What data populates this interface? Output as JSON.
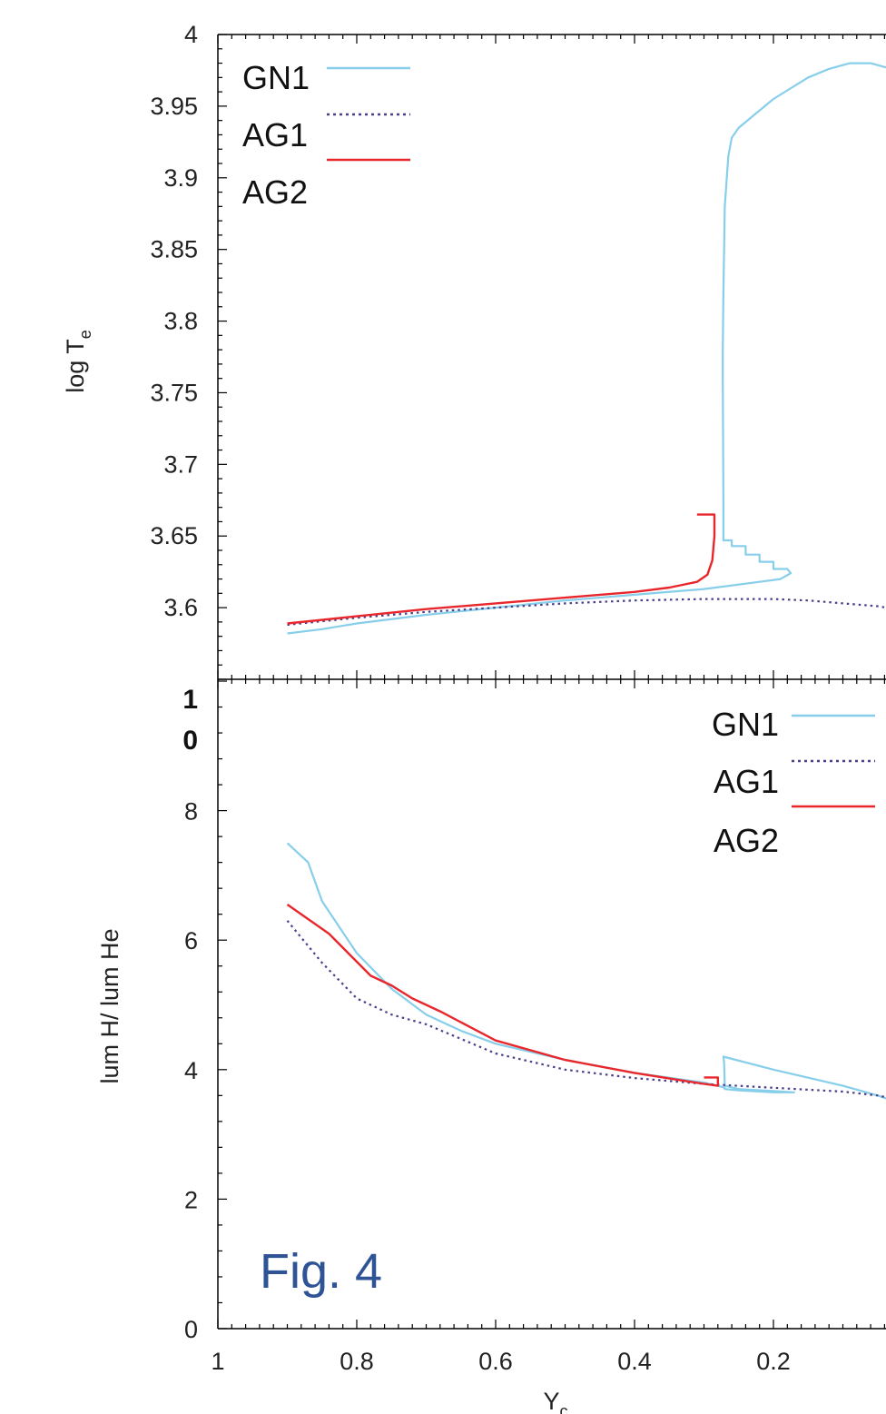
{
  "figure_label": "Fig. 4",
  "colors": {
    "GN1": "#87ceeb",
    "AG1": "#4b3f8a",
    "AG2": "#e8272c",
    "axis": "#000000",
    "fig_label": "#2f5496"
  },
  "chart_data": [
    {
      "type": "line",
      "xlabel": "",
      "ylabel": "log T_e",
      "ylabel_main": "log T",
      "ylabel_sub": "e",
      "xlim": [
        1.0,
        0.0
      ],
      "ylim": [
        3.55,
        4.0
      ],
      "x_ticks": [],
      "y_ticks": [
        "3.6",
        "3.65",
        "3.7",
        "3.75",
        "3.8",
        "3.85",
        "3.9",
        "3.95",
        "4"
      ],
      "legend": {
        "placement": "top-left",
        "entries": [
          "GN1",
          "AG1",
          "AG2"
        ]
      },
      "series": [
        {
          "name": "GN1",
          "style": "solid",
          "x": [
            0.9,
            0.85,
            0.8,
            0.7,
            0.6,
            0.5,
            0.4,
            0.3,
            0.22,
            0.19,
            0.175,
            0.18,
            0.2,
            0.2,
            0.22,
            0.22,
            0.24,
            0.24,
            0.26,
            0.26,
            0.272,
            0.272,
            0.273,
            0.273,
            0.272,
            0.27,
            0.265,
            0.26,
            0.25,
            0.2,
            0.15,
            0.12,
            0.09,
            0.06,
            0.03,
            0.0
          ],
          "y": [
            3.582,
            3.585,
            3.589,
            3.595,
            3.6,
            3.605,
            3.609,
            3.613,
            3.618,
            3.62,
            3.624,
            3.627,
            3.627,
            3.632,
            3.632,
            3.637,
            3.637,
            3.643,
            3.643,
            3.647,
            3.647,
            3.67,
            3.76,
            3.78,
            3.82,
            3.88,
            3.915,
            3.928,
            3.935,
            3.955,
            3.97,
            3.976,
            3.98,
            3.98,
            3.976,
            3.97
          ]
        },
        {
          "name": "AG1",
          "style": "dotted",
          "x": [
            0.9,
            0.8,
            0.7,
            0.6,
            0.5,
            0.4,
            0.3,
            0.2,
            0.15,
            0.1,
            0.05,
            0.0
          ],
          "y": [
            3.588,
            3.593,
            3.597,
            3.6,
            3.603,
            3.605,
            3.606,
            3.606,
            3.605,
            3.603,
            3.601,
            3.597
          ]
        },
        {
          "name": "AG2",
          "style": "solid",
          "x": [
            0.9,
            0.8,
            0.7,
            0.6,
            0.5,
            0.4,
            0.35,
            0.31,
            0.295,
            0.288,
            0.285,
            0.285,
            0.31
          ],
          "y": [
            3.589,
            3.594,
            3.599,
            3.603,
            3.607,
            3.611,
            3.614,
            3.618,
            3.623,
            3.633,
            3.65,
            3.665,
            3.665
          ]
        }
      ]
    },
    {
      "type": "line",
      "xlabel": "Y_c",
      "xlabel_main": "Y",
      "xlabel_sub": "c",
      "ylabel": "lum H/ lum He",
      "xlim": [
        1.0,
        0.0
      ],
      "ylim": [
        0,
        10
      ],
      "x_ticks": [
        "1",
        "0.8",
        "0.6",
        "0.4",
        "0.2"
      ],
      "y_ticks": [
        "0",
        "2",
        "4",
        "6",
        "8"
      ],
      "y_top_label": [
        "1",
        "0"
      ],
      "legend": {
        "placement": "top-right",
        "entries": [
          "GN1",
          "AG1",
          "AG2"
        ]
      },
      "series": [
        {
          "name": "GN1",
          "style": "solid",
          "x": [
            0.9,
            0.87,
            0.85,
            0.8,
            0.75,
            0.7,
            0.65,
            0.6,
            0.5,
            0.4,
            0.3,
            0.28,
            0.27,
            0.27,
            0.25,
            0.2,
            0.17,
            0.2,
            0.25,
            0.27,
            0.271,
            0.272,
            0.2,
            0.1,
            0.05,
            0.0
          ],
          "y": [
            7.5,
            7.2,
            6.6,
            5.8,
            5.25,
            4.85,
            4.6,
            4.4,
            4.15,
            3.95,
            3.8,
            3.75,
            3.72,
            3.7,
            3.68,
            3.65,
            3.65,
            3.67,
            3.7,
            3.75,
            4.1,
            4.2,
            4.0,
            3.75,
            3.6,
            3.42
          ]
        },
        {
          "name": "AG1",
          "style": "dotted",
          "x": [
            0.9,
            0.85,
            0.8,
            0.75,
            0.7,
            0.6,
            0.5,
            0.4,
            0.3,
            0.2,
            0.1,
            0.05,
            0.0
          ],
          "y": [
            6.3,
            5.65,
            5.1,
            4.85,
            4.7,
            4.25,
            4.0,
            3.87,
            3.78,
            3.72,
            3.66,
            3.6,
            3.5
          ]
        },
        {
          "name": "AG2",
          "style": "solid",
          "x": [
            0.9,
            0.84,
            0.78,
            0.75,
            0.72,
            0.68,
            0.6,
            0.5,
            0.4,
            0.33,
            0.3,
            0.28,
            0.28,
            0.3
          ],
          "y": [
            6.55,
            6.1,
            5.45,
            5.3,
            5.1,
            4.9,
            4.45,
            4.15,
            3.95,
            3.83,
            3.78,
            3.75,
            3.88,
            3.88
          ]
        }
      ]
    }
  ]
}
